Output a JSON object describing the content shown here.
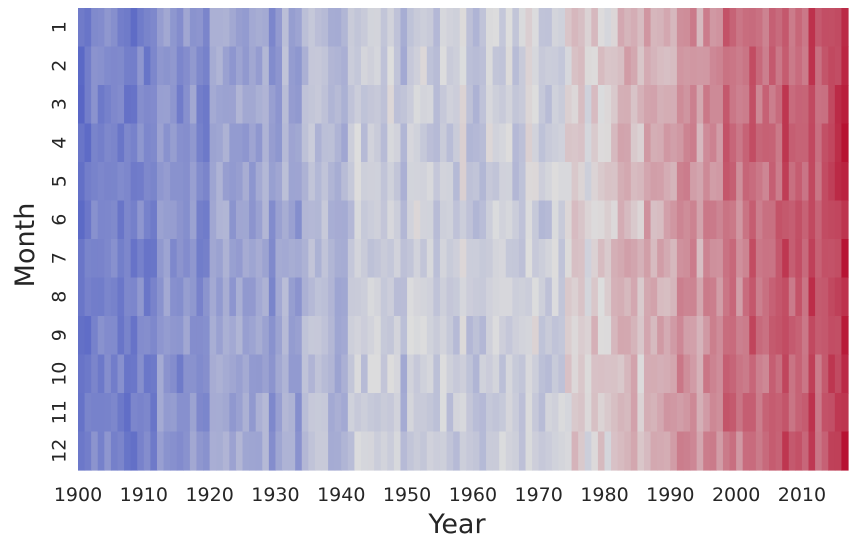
{
  "chart_data": {
    "type": "heatmap",
    "title": "",
    "xlabel": "Year",
    "ylabel": "Month",
    "x_range": [
      1900,
      2016
    ],
    "x_ticks": [
      "1900",
      "1910",
      "1920",
      "1930",
      "1940",
      "1950",
      "1960",
      "1970",
      "1980",
      "1990",
      "2000",
      "2010"
    ],
    "y_categories": [
      "1",
      "2",
      "3",
      "4",
      "5",
      "6",
      "7",
      "8",
      "9",
      "10",
      "11",
      "12"
    ],
    "colormap": "coolwarm",
    "colorbar": false,
    "grid": false,
    "color_scale": {
      "low": "#3b4cc0",
      "mid": "#dddddd",
      "high": "#b40426"
    },
    "decade_trend": [
      0.18,
      0.22,
      0.26,
      0.3,
      0.4,
      0.42,
      0.44,
      0.47,
      0.55,
      0.63,
      0.75,
      0.82
    ],
    "final_year_boost": 0.15
  }
}
